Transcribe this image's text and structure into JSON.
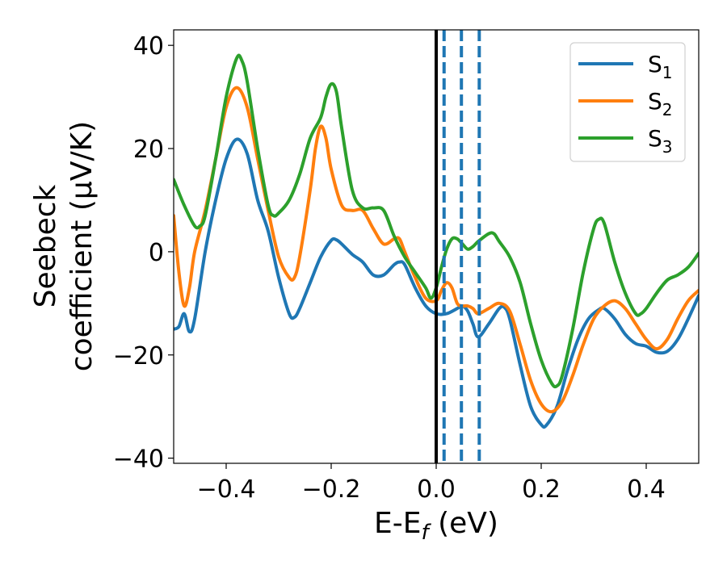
{
  "chart_data": {
    "type": "line",
    "title": "",
    "xlabel": "E-E$_f$ (eV)",
    "xlabel_parts": {
      "main": "E-E",
      "sub": "f",
      "tail": " (eV)"
    },
    "ylabel_line1": "Seebeck",
    "ylabel_line2": "coefficient  (μV/K)",
    "xlim": [
      -0.5,
      0.5
    ],
    "ylim": [
      -41,
      43
    ],
    "xticks": [
      -0.4,
      -0.2,
      0.0,
      0.2,
      0.4
    ],
    "xtick_labels": [
      "−0.4",
      "−0.2",
      "0.0",
      "0.2",
      "0.4"
    ],
    "yticks": [
      -40,
      -20,
      0,
      20,
      40
    ],
    "ytick_labels": [
      "−40",
      "−20",
      "0",
      "20",
      "40"
    ],
    "grid": false,
    "legend_position": "top-right",
    "fermi_line": {
      "x": 0.0,
      "color": "#000000",
      "style": "solid"
    },
    "dashed_lines": [
      {
        "x": 0.015,
        "color": "#1f77b4"
      },
      {
        "x": 0.048,
        "color": "#1f77b4"
      },
      {
        "x": 0.082,
        "color": "#1f77b4"
      }
    ],
    "series": [
      {
        "name": "S1",
        "label_main": "S",
        "label_sub": "1",
        "color": "#1f77b4",
        "points": [
          [
            -0.5,
            -15
          ],
          [
            -0.49,
            -14.5
          ],
          [
            -0.48,
            -12
          ],
          [
            -0.47,
            -15.5
          ],
          [
            -0.46,
            -13
          ],
          [
            -0.44,
            0
          ],
          [
            -0.42,
            10
          ],
          [
            -0.4,
            18
          ],
          [
            -0.38,
            21.8
          ],
          [
            -0.36,
            19
          ],
          [
            -0.34,
            10
          ],
          [
            -0.32,
            4
          ],
          [
            -0.3,
            -5
          ],
          [
            -0.28,
            -12
          ],
          [
            -0.27,
            -12.7
          ],
          [
            -0.26,
            -11
          ],
          [
            -0.24,
            -6
          ],
          [
            -0.22,
            -1
          ],
          [
            -0.2,
            2.2
          ],
          [
            -0.19,
            2.3
          ],
          [
            -0.18,
            1.5
          ],
          [
            -0.16,
            -0.5
          ],
          [
            -0.14,
            -2
          ],
          [
            -0.12,
            -4.5
          ],
          [
            -0.1,
            -4.5
          ],
          [
            -0.08,
            -2.5
          ],
          [
            -0.07,
            -2
          ],
          [
            -0.06,
            -2.5
          ],
          [
            -0.04,
            -7
          ],
          [
            -0.02,
            -10.5
          ],
          [
            0.0,
            -12
          ],
          [
            0.02,
            -12
          ],
          [
            0.04,
            -11
          ],
          [
            0.05,
            -10.5
          ],
          [
            0.06,
            -11.5
          ],
          [
            0.07,
            -14
          ],
          [
            0.08,
            -16.5
          ],
          [
            0.1,
            -14
          ],
          [
            0.12,
            -11
          ],
          [
            0.13,
            -10.8
          ],
          [
            0.14,
            -13
          ],
          [
            0.16,
            -22
          ],
          [
            0.18,
            -30
          ],
          [
            0.2,
            -33.5
          ],
          [
            0.21,
            -33.6
          ],
          [
            0.23,
            -30
          ],
          [
            0.25,
            -23
          ],
          [
            0.27,
            -17
          ],
          [
            0.29,
            -13
          ],
          [
            0.31,
            -11.2
          ],
          [
            0.32,
            -11
          ],
          [
            0.34,
            -13
          ],
          [
            0.36,
            -16
          ],
          [
            0.38,
            -17.8
          ],
          [
            0.4,
            -18.3
          ],
          [
            0.42,
            -19.5
          ],
          [
            0.44,
            -19.3
          ],
          [
            0.46,
            -17
          ],
          [
            0.48,
            -13
          ],
          [
            0.5,
            -8.5
          ]
        ]
      },
      {
        "name": "S2",
        "label_main": "S",
        "label_sub": "2",
        "color": "#ff7f0e",
        "points": [
          [
            -0.5,
            7
          ],
          [
            -0.49,
            -4
          ],
          [
            -0.48,
            -10.5
          ],
          [
            -0.47,
            -7
          ],
          [
            -0.46,
            0
          ],
          [
            -0.44,
            8
          ],
          [
            -0.42,
            18
          ],
          [
            -0.4,
            28
          ],
          [
            -0.38,
            31.8
          ],
          [
            -0.36,
            28
          ],
          [
            -0.34,
            18
          ],
          [
            -0.32,
            8
          ],
          [
            -0.3,
            -1
          ],
          [
            -0.28,
            -5
          ],
          [
            -0.27,
            -5
          ],
          [
            -0.26,
            -1
          ],
          [
            -0.24,
            12
          ],
          [
            -0.23,
            20
          ],
          [
            -0.22,
            24.3
          ],
          [
            -0.21,
            22
          ],
          [
            -0.2,
            16
          ],
          [
            -0.18,
            9
          ],
          [
            -0.16,
            8
          ],
          [
            -0.14,
            8
          ],
          [
            -0.12,
            4.5
          ],
          [
            -0.1,
            1.5
          ],
          [
            -0.08,
            2.5
          ],
          [
            -0.07,
            2.5
          ],
          [
            -0.06,
            0
          ],
          [
            -0.04,
            -5
          ],
          [
            -0.02,
            -9
          ],
          [
            0.0,
            -9.5
          ],
          [
            0.01,
            -7.5
          ],
          [
            0.02,
            -6
          ],
          [
            0.03,
            -7
          ],
          [
            0.04,
            -10
          ],
          [
            0.05,
            -10.5
          ],
          [
            0.06,
            -10.5
          ],
          [
            0.07,
            -11
          ],
          [
            0.08,
            -12
          ],
          [
            0.1,
            -11
          ],
          [
            0.12,
            -10
          ],
          [
            0.14,
            -11.5
          ],
          [
            0.16,
            -18
          ],
          [
            0.18,
            -25
          ],
          [
            0.2,
            -29.5
          ],
          [
            0.22,
            -31
          ],
          [
            0.24,
            -29
          ],
          [
            0.26,
            -24
          ],
          [
            0.28,
            -18
          ],
          [
            0.3,
            -13
          ],
          [
            0.32,
            -10.5
          ],
          [
            0.34,
            -9.5
          ],
          [
            0.36,
            -11
          ],
          [
            0.38,
            -14
          ],
          [
            0.4,
            -17
          ],
          [
            0.42,
            -18.8
          ],
          [
            0.44,
            -17
          ],
          [
            0.46,
            -13
          ],
          [
            0.48,
            -9.5
          ],
          [
            0.5,
            -7.5
          ]
        ]
      },
      {
        "name": "S3",
        "label_main": "S",
        "label_sub": "3",
        "color": "#2ca02c",
        "points": [
          [
            -0.5,
            14
          ],
          [
            -0.48,
            9
          ],
          [
            -0.46,
            5
          ],
          [
            -0.45,
            5
          ],
          [
            -0.44,
            7
          ],
          [
            -0.42,
            18
          ],
          [
            -0.4,
            30
          ],
          [
            -0.38,
            37.5
          ],
          [
            -0.37,
            37
          ],
          [
            -0.36,
            33
          ],
          [
            -0.34,
            20
          ],
          [
            -0.32,
            9
          ],
          [
            -0.31,
            7
          ],
          [
            -0.3,
            7.5
          ],
          [
            -0.28,
            10
          ],
          [
            -0.26,
            15
          ],
          [
            -0.24,
            22
          ],
          [
            -0.22,
            26
          ],
          [
            -0.21,
            30
          ],
          [
            -0.2,
            32.5
          ],
          [
            -0.19,
            31
          ],
          [
            -0.18,
            24
          ],
          [
            -0.16,
            12
          ],
          [
            -0.14,
            8.5
          ],
          [
            -0.12,
            8.5
          ],
          [
            -0.1,
            8
          ],
          [
            -0.08,
            3
          ],
          [
            -0.06,
            -1
          ],
          [
            -0.04,
            -4
          ],
          [
            -0.02,
            -7
          ],
          [
            -0.01,
            -9
          ],
          [
            0.0,
            -7
          ],
          [
            0.01,
            -3
          ],
          [
            0.02,
            0.5
          ],
          [
            0.03,
            2.5
          ],
          [
            0.04,
            2.5
          ],
          [
            0.05,
            1.5
          ],
          [
            0.06,
            0.5
          ],
          [
            0.07,
            1
          ],
          [
            0.08,
            2
          ],
          [
            0.1,
            3.5
          ],
          [
            0.11,
            3.5
          ],
          [
            0.12,
            2
          ],
          [
            0.14,
            -1
          ],
          [
            0.16,
            -6
          ],
          [
            0.18,
            -14
          ],
          [
            0.2,
            -21
          ],
          [
            0.22,
            -25.5
          ],
          [
            0.23,
            -26
          ],
          [
            0.24,
            -24
          ],
          [
            0.26,
            -15
          ],
          [
            0.28,
            -4
          ],
          [
            0.3,
            4.5
          ],
          [
            0.31,
            6.3
          ],
          [
            0.32,
            5.5
          ],
          [
            0.34,
            -2
          ],
          [
            0.36,
            -8
          ],
          [
            0.38,
            -12
          ],
          [
            0.39,
            -12
          ],
          [
            0.4,
            -11
          ],
          [
            0.42,
            -8
          ],
          [
            0.44,
            -5.5
          ],
          [
            0.46,
            -4.5
          ],
          [
            0.48,
            -3
          ],
          [
            0.5,
            -0.3
          ]
        ]
      }
    ]
  }
}
